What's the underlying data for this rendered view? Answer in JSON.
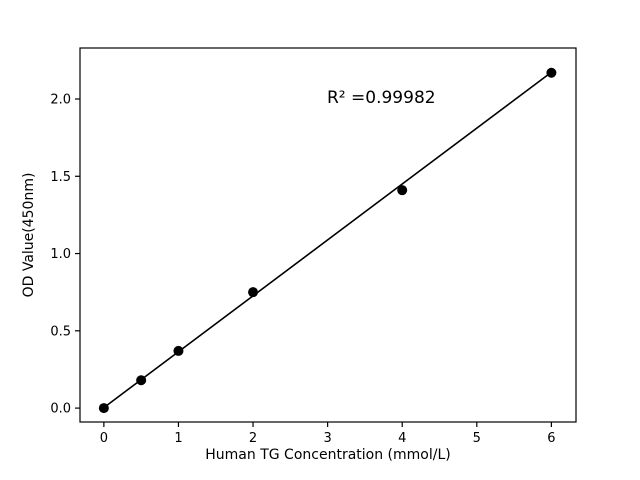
{
  "window": {
    "background": "#ffffff"
  },
  "chart_data": {
    "type": "scatter",
    "title": "",
    "xlabel": "Human TG Concentration (mmol/L)",
    "ylabel": "OD Value(450nm)",
    "annotation": "R² =0.99982",
    "points": [
      {
        "x": 0,
        "y": 0.0
      },
      {
        "x": 0.5,
        "y": 0.18
      },
      {
        "x": 1,
        "y": 0.37
      },
      {
        "x": 2,
        "y": 0.75
      },
      {
        "x": 4,
        "y": 1.41
      },
      {
        "x": 6,
        "y": 2.17
      }
    ],
    "fit_line": {
      "slope": 0.3617,
      "intercept": 0.003,
      "x_start": 0,
      "x_end": 6
    },
    "xlim": [
      -0.32,
      6.33
    ],
    "ylim": [
      -0.09,
      2.33
    ],
    "xticks": {
      "values": [
        0,
        1,
        2,
        3,
        4,
        5,
        6
      ],
      "labels": [
        "0",
        "1",
        "2",
        "3",
        "4",
        "5",
        "6"
      ]
    },
    "yticks": {
      "values": [
        0,
        0.5,
        1.0,
        1.5,
        2.0
      ],
      "labels": [
        "0.0",
        "0.5",
        "1.0",
        "1.5",
        "2.0"
      ]
    },
    "grid": false,
    "legend_position": "none",
    "colors": {
      "points": "#000000",
      "line": "#000000",
      "axis": "#000000",
      "text": "#000000",
      "background": "#ffffff"
    }
  }
}
